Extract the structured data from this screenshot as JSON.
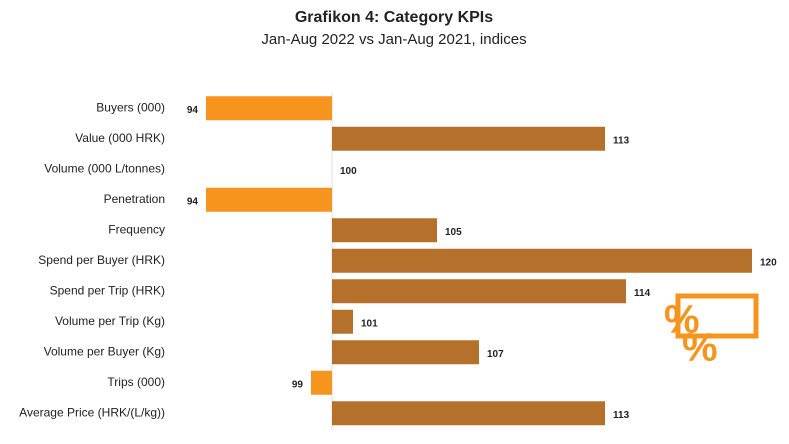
{
  "chart_data": {
    "type": "hbar",
    "title": "Grafikon 4: Category KPIs",
    "subtitle": "Jan-Aug 2022 vs Jan-Aug 2021, indices",
    "categories": [
      "Buyers (000)",
      "Value (000 HRK)",
      "Volume (000 L/tonnes)",
      "Penetration",
      "Frequency",
      "Spend per Buyer (HRK)",
      "Spend per Trip (HRK)",
      "Volume per Trip (Kg)",
      "Volume per Buyer (Kg)",
      "Trips (000)",
      "Average Price (HRK/(L/kg))"
    ],
    "values": [
      94,
      113,
      100,
      94,
      105,
      120,
      114,
      101,
      107,
      99,
      113
    ],
    "colors": [
      "#f7941d",
      "#b5702b",
      "#b5702b",
      "#f7941d",
      "#b5702b",
      "#b5702b",
      "#b5702b",
      "#b5702b",
      "#b5702b",
      "#f7941d",
      "#b5702b"
    ],
    "baseline": 100,
    "xlim": [
      92,
      120
    ]
  }
}
